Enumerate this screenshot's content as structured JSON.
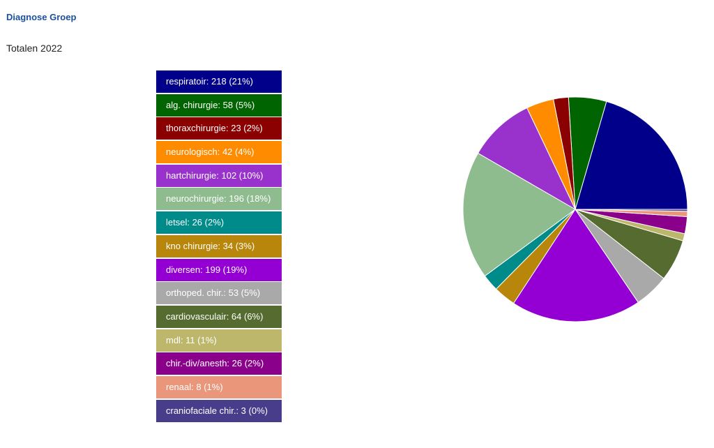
{
  "header": {
    "title": "Diagnose Groep",
    "subtitle": "Totalen 2022"
  },
  "chart_data": {
    "type": "pie",
    "title": "Diagnose Groep",
    "subtitle": "Totalen 2022",
    "legend_position": "left",
    "slices": [
      {
        "name": "respiratoir",
        "value": 218,
        "percent": 21,
        "label": "respiratoir: 218 (21%)",
        "color": "#00008b"
      },
      {
        "name": "alg. chirurgie",
        "value": 58,
        "percent": 5,
        "label": "alg. chirurgie: 58 (5%)",
        "color": "#006400"
      },
      {
        "name": "thoraxchirurgie",
        "value": 23,
        "percent": 2,
        "label": "thoraxchirurgie: 23 (2%)",
        "color": "#8b0000"
      },
      {
        "name": "neurologisch",
        "value": 42,
        "percent": 4,
        "label": "neurologisch: 42 (4%)",
        "color": "#ff8c00"
      },
      {
        "name": "hartchirurgie",
        "value": 102,
        "percent": 10,
        "label": "hartchirurgie: 102 (10%)",
        "color": "#9932cc"
      },
      {
        "name": "neurochirurgie",
        "value": 196,
        "percent": 18,
        "label": "neurochirurgie: 196 (18%)",
        "color": "#8fbc8f"
      },
      {
        "name": "letsel",
        "value": 26,
        "percent": 2,
        "label": "letsel: 26 (2%)",
        "color": "#008b8b"
      },
      {
        "name": "kno chirurgie",
        "value": 34,
        "percent": 3,
        "label": "kno chirurgie: 34 (3%)",
        "color": "#b8860b"
      },
      {
        "name": "diversen",
        "value": 199,
        "percent": 19,
        "label": "diversen: 199 (19%)",
        "color": "#9400d3"
      },
      {
        "name": "orthoped. chir.",
        "value": 53,
        "percent": 5,
        "label": "orthoped. chir.: 53 (5%)",
        "color": "#a9a9a9"
      },
      {
        "name": "cardiovasculair",
        "value": 64,
        "percent": 6,
        "label": "cardiovasculair: 64 (6%)",
        "color": "#556b2f"
      },
      {
        "name": "mdl",
        "value": 11,
        "percent": 1,
        "label": "mdl: 11 (1%)",
        "color": "#bdb76b"
      },
      {
        "name": "chir.-div/anesth",
        "value": 26,
        "percent": 2,
        "label": "chir.-div/anesth: 26 (2%)",
        "color": "#8b008b"
      },
      {
        "name": "renaal",
        "value": 8,
        "percent": 1,
        "label": "renaal: 8 (1%)",
        "color": "#e9967a"
      },
      {
        "name": "craniofaciale chir.",
        "value": 3,
        "percent": 0,
        "label": "craniofaciale chir.: 3 (0%)",
        "color": "#483d8b"
      }
    ]
  }
}
